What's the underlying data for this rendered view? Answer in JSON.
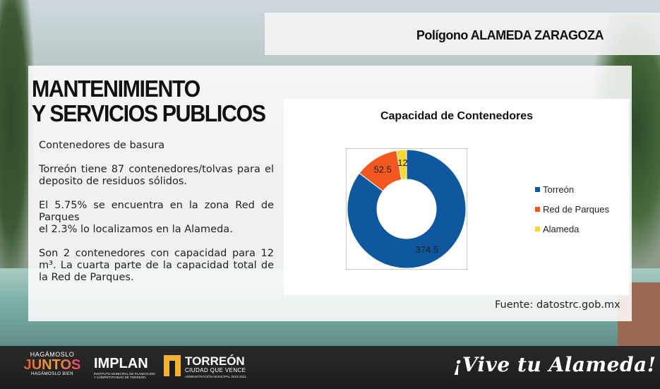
{
  "header": {
    "title": "Polígono ALAMEDA ZARAGOZA"
  },
  "section": {
    "title_line1": "MANTENIMIENTO",
    "title_line2": "Y SERVICIOS PUBLICOS"
  },
  "body": {
    "p1": "Contenedores de basura",
    "p2": "Torreón tiene 87 contenedores/tolvas para el deposito de residuos sólidos.",
    "p3_line1": "El 5.75% se encuentra en la zona Red de Parques",
    "p3_line2": "el 2.3% lo localizamos en la Alameda.",
    "p4": "Son 2 contenedores con capacidad para 12 m³. La cuarta parte de la capacidad total de la Red de Parques."
  },
  "chart_data": {
    "type": "pie",
    "donut": true,
    "title": "Capacidad de Contenedores",
    "categories": [
      "Torreón",
      "Red de Parques",
      "Alameda"
    ],
    "values": [
      374.5,
      52.5,
      12
    ],
    "value_labels": [
      "374.5",
      "52.5",
      "12"
    ],
    "colors": [
      "#0f58a0",
      "#f2581f",
      "#f8d731"
    ],
    "legend_position": "right"
  },
  "source": {
    "text": "Fuente: datostrc.gob.mx"
  },
  "footer": {
    "logo1_top": "HAGÁMOSLO",
    "logo1_main": "JUNTOS",
    "logo1_bottom": "HAGÁMOSLO BIEN",
    "logo2_main": "IMPLAN",
    "logo2_sub": "INSTITUTO MUNICIPAL DE PLANEACIÓN Y COMPETITIVIDAD DE TORREÓN",
    "logo3_main": "TORREÓN",
    "logo3_tagline": "CIUDAD QUE VENCE",
    "logo3_sub": "ADMINISTRACIÓN MUNICIPAL 2019-2021",
    "slogan": "¡Vive tu Alameda!"
  }
}
